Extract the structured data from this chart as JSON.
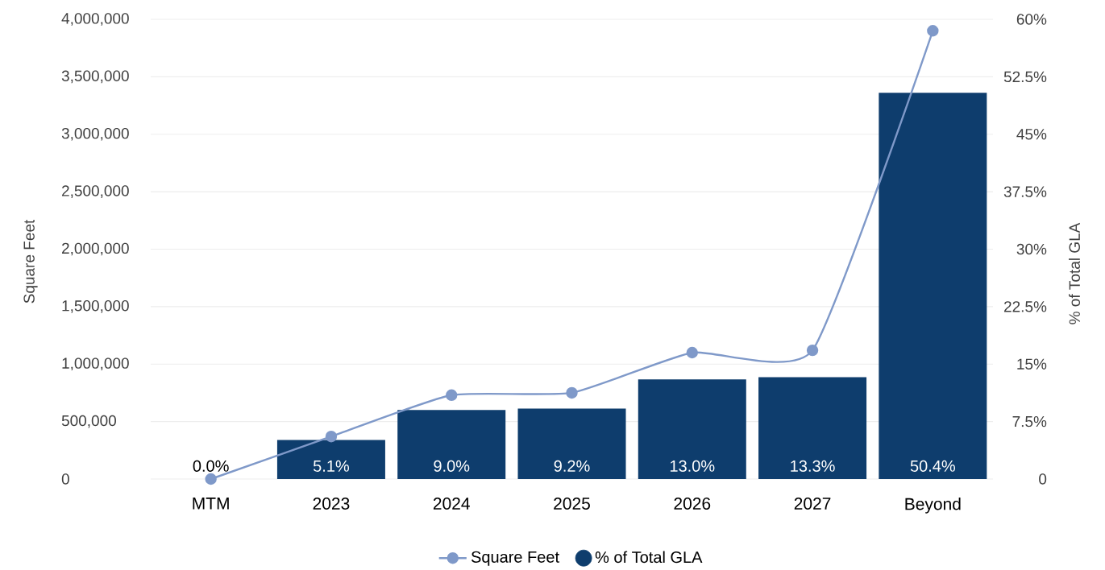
{
  "chart_data": {
    "type": "bar",
    "ylabel": "Square Feet",
    "y2label": "% of Total GLA",
    "categories": [
      "MTM",
      "2023",
      "2024",
      "2025",
      "2026",
      "2027",
      "Beyond"
    ],
    "series": [
      {
        "name": "Square Feet",
        "type": "line",
        "color": "#7f99c9",
        "values": [
          0,
          370000,
          730000,
          750000,
          1100000,
          1120000,
          3900000
        ]
      },
      {
        "name": "% of Total GLA",
        "axis": "y2",
        "color": "#0e3d6d",
        "values": [
          0.0,
          5.1,
          9.0,
          9.2,
          13.0,
          13.3,
          50.4
        ],
        "value_labels": [
          "0.0%",
          "5.1%",
          "9.0%",
          "9.2%",
          "13.0%",
          "13.3%",
          "50.4%"
        ]
      }
    ],
    "ylim": [
      0,
      4000000
    ],
    "yticks": [
      0,
      {
        "value": 500000,
        "label": "500,000"
      },
      {
        "value": 1000000,
        "label": "1,000,000"
      },
      {
        "value": 1500000,
        "label": "1,500,000"
      },
      {
        "value": 2000000,
        "label": "2,000,000"
      },
      {
        "value": 2500000,
        "label": "2,500,000"
      },
      {
        "value": 3000000,
        "label": "3,000,000"
      },
      {
        "value": 3500000,
        "label": "3,500,000"
      },
      {
        "value": 4000000,
        "label": "4,000,000"
      }
    ],
    "y2lim": [
      0,
      60
    ],
    "y2ticks": [
      0,
      {
        "value": 7.5,
        "label": "7.5%"
      },
      {
        "value": 15,
        "label": "15%"
      },
      {
        "value": 22.5,
        "label": "22.5%"
      },
      {
        "value": 30,
        "label": "30%"
      },
      {
        "value": 37.5,
        "label": "37.5%"
      },
      {
        "value": 45,
        "label": "45%"
      },
      {
        "value": 52.5,
        "label": "52.5%"
      },
      {
        "value": 60,
        "label": "60%"
      }
    ],
    "grid": "y",
    "legend": "bottom",
    "marker": "circle"
  }
}
